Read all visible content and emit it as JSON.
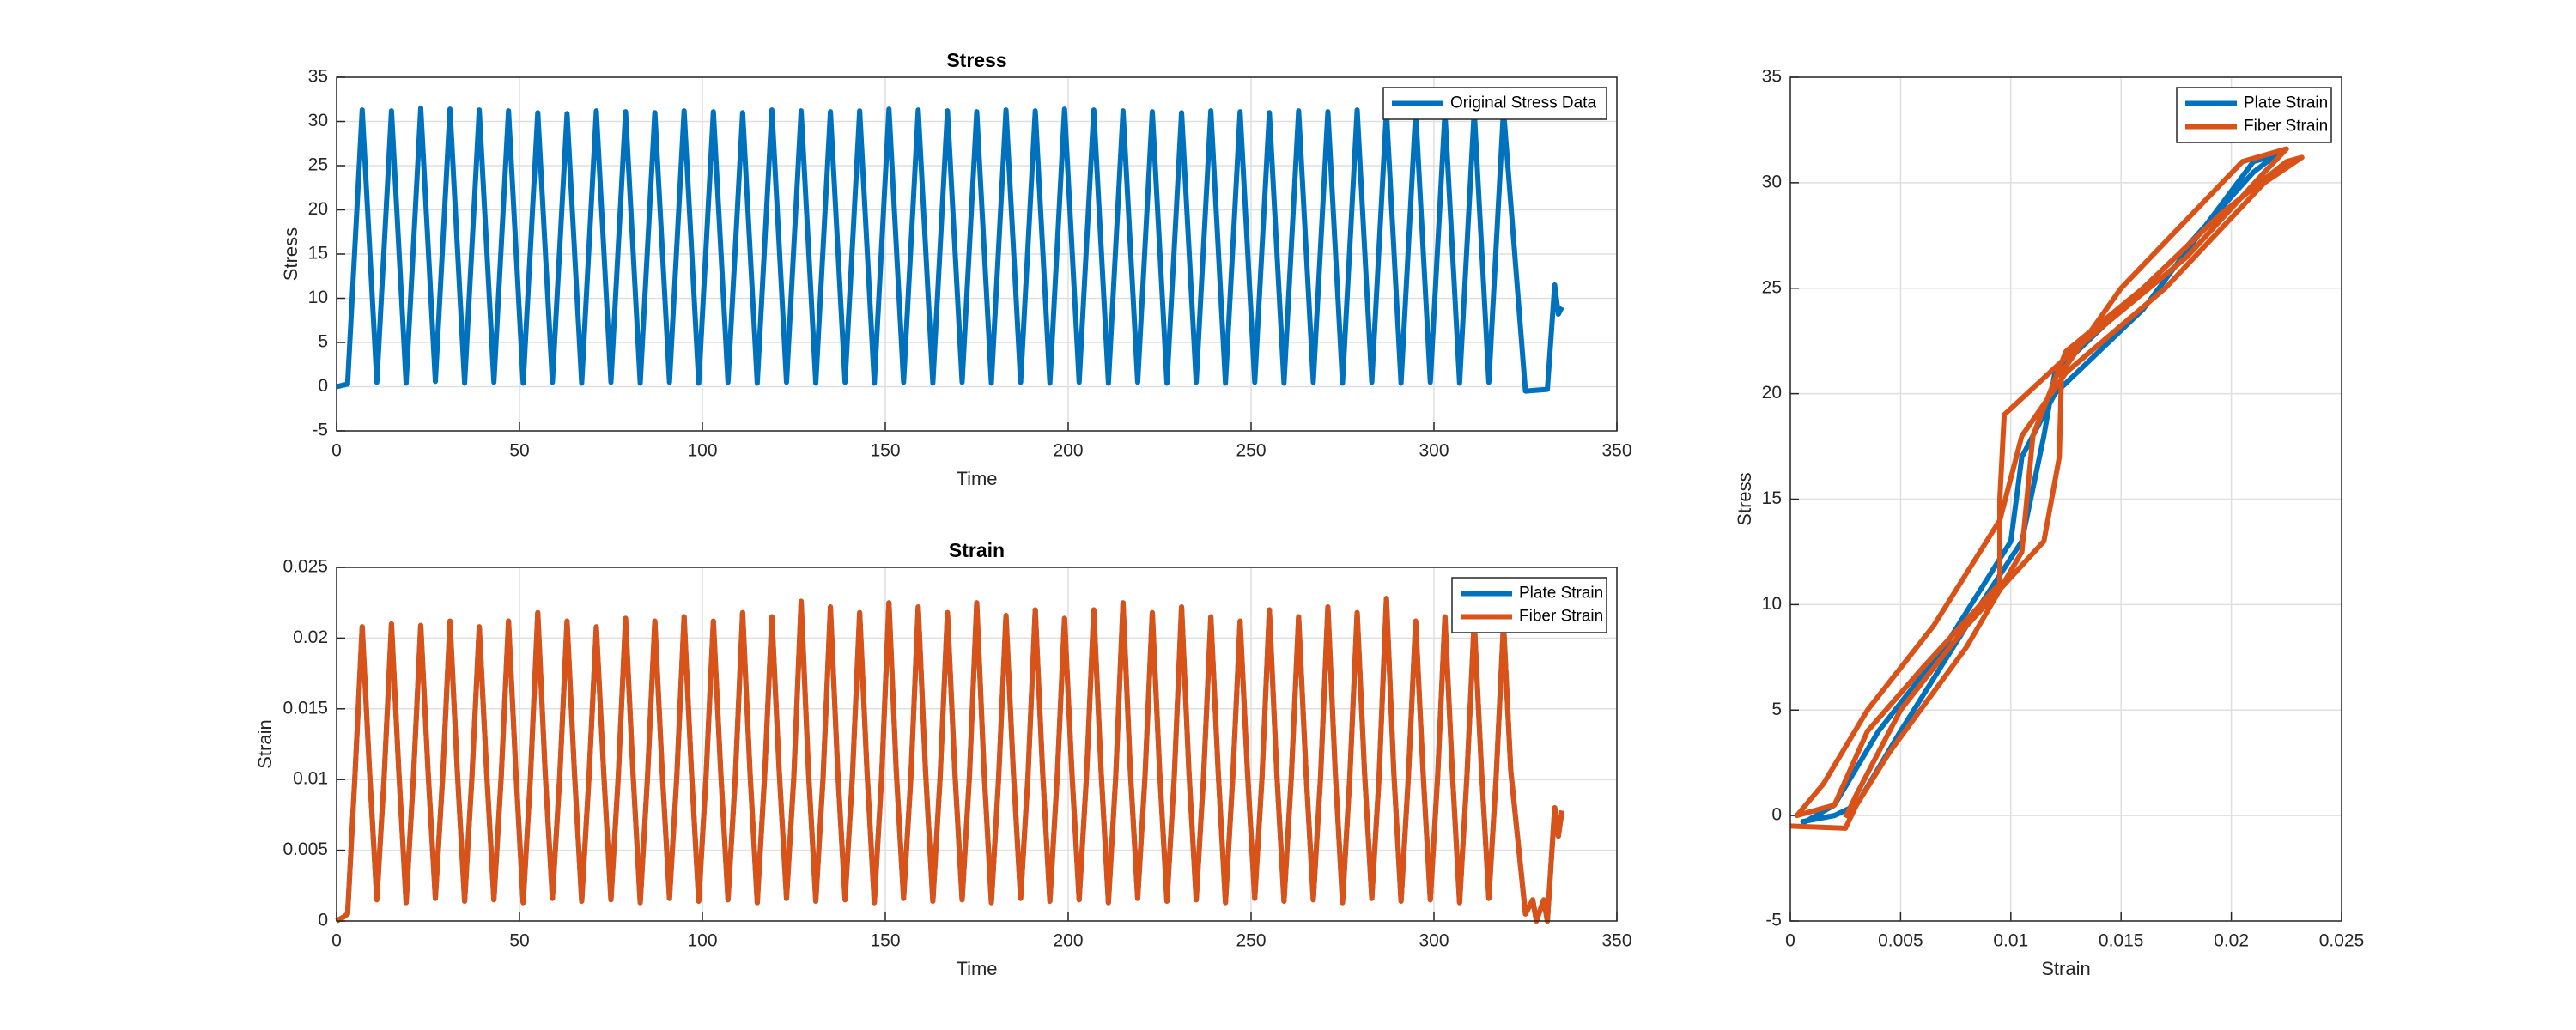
{
  "chart_data": [
    {
      "type": "line",
      "title": "Stress",
      "xlabel": "Time",
      "ylabel": "Stress",
      "x": [
        0,
        3,
        7,
        11,
        15,
        19,
        23,
        27,
        31,
        35,
        39,
        43,
        47,
        51,
        55,
        59,
        63,
        67,
        71,
        75,
        79,
        83,
        87,
        91,
        95,
        99,
        103,
        107,
        111,
        115,
        119,
        123,
        127,
        131,
        135,
        139,
        143,
        147,
        151,
        155,
        159,
        163,
        167,
        171,
        175,
        179,
        183,
        187,
        191,
        195,
        199,
        203,
        207,
        211,
        215,
        219,
        223,
        227,
        231,
        235,
        239,
        243,
        247,
        251,
        255,
        259,
        263,
        267,
        271,
        275,
        279,
        283,
        287,
        291,
        295,
        299,
        303,
        307,
        311,
        315,
        319,
        325,
        331,
        333,
        334,
        335
      ],
      "series": [
        {
          "name": "Original Stress Data",
          "color": "#0072BD",
          "values": [
            0,
            0.3,
            31.3,
            0.5,
            31.2,
            0.4,
            31.5,
            0.6,
            31.4,
            0.4,
            31.3,
            0.5,
            31.2,
            0.4,
            31.0,
            0.5,
            30.9,
            0.4,
            31.2,
            0.5,
            31.1,
            0.4,
            31.0,
            0.5,
            31.2,
            0.4,
            31.1,
            0.5,
            31.0,
            0.4,
            31.3,
            0.5,
            31.2,
            0.4,
            31.1,
            0.5,
            31.2,
            0.4,
            31.4,
            0.5,
            31.3,
            0.4,
            31.2,
            0.5,
            31.1,
            0.4,
            31.3,
            0.5,
            31.2,
            0.4,
            31.4,
            0.5,
            31.3,
            0.4,
            31.2,
            0.5,
            31.1,
            0.4,
            31.0,
            0.5,
            31.2,
            0.4,
            31.1,
            0.5,
            31.0,
            0.4,
            31.2,
            0.5,
            31.1,
            0.4,
            31.3,
            0.5,
            31.2,
            0.4,
            31.1,
            0.5,
            31.0,
            0.4,
            31.2,
            0.5,
            31.3,
            -0.5,
            -0.3,
            11.5,
            8.2,
            9
          ]
        }
      ],
      "xlim": [
        0,
        350
      ],
      "ylim": [
        -5,
        35
      ],
      "xticks": [
        0,
        50,
        100,
        150,
        200,
        250,
        300,
        350
      ],
      "yticks": [
        -5,
        0,
        5,
        10,
        15,
        20,
        25,
        30,
        35
      ],
      "grid": true,
      "legend": "upper right"
    },
    {
      "type": "line",
      "title": "Strain",
      "xlabel": "Time",
      "ylabel": "Strain",
      "x": [
        0,
        2,
        3,
        5,
        7,
        9,
        11,
        13,
        15,
        17,
        19,
        21,
        23,
        25,
        27,
        29,
        31,
        33,
        35,
        37,
        39,
        41,
        43,
        45,
        47,
        49,
        51,
        53,
        55,
        57,
        59,
        61,
        63,
        65,
        67,
        69,
        71,
        73,
        75,
        77,
        79,
        81,
        83,
        85,
        87,
        89,
        91,
        93,
        95,
        97,
        99,
        101,
        103,
        105,
        107,
        109,
        111,
        113,
        115,
        117,
        119,
        121,
        123,
        125,
        127,
        129,
        131,
        133,
        135,
        137,
        139,
        141,
        143,
        145,
        147,
        149,
        151,
        153,
        155,
        157,
        159,
        161,
        163,
        165,
        167,
        169,
        171,
        173,
        175,
        177,
        179,
        181,
        183,
        185,
        187,
        189,
        191,
        193,
        195,
        197,
        199,
        201,
        203,
        205,
        207,
        209,
        211,
        213,
        215,
        217,
        219,
        221,
        223,
        225,
        227,
        229,
        231,
        233,
        235,
        237,
        239,
        241,
        243,
        245,
        247,
        249,
        251,
        253,
        255,
        257,
        259,
        261,
        263,
        265,
        267,
        269,
        271,
        273,
        275,
        277,
        279,
        281,
        283,
        285,
        287,
        289,
        291,
        293,
        295,
        297,
        299,
        301,
        303,
        305,
        307,
        309,
        311,
        313,
        315,
        317,
        319,
        321,
        325,
        327,
        328,
        330,
        331,
        333,
        334,
        335
      ],
      "series": [
        {
          "name": "Plate Strain",
          "color": "#0072BD",
          "values": [
            0,
            0.0003,
            0.0005,
            0.0102,
            0.0208,
            0.0106,
            0.0015,
            0.0102,
            0.021,
            0.0106,
            0.0013,
            0.0102,
            0.0209,
            0.0106,
            0.0016,
            0.0102,
            0.0212,
            0.0106,
            0.0014,
            0.0102,
            0.0208,
            0.0106,
            0.0015,
            0.0102,
            0.0212,
            0.0106,
            0.0013,
            0.0102,
            0.0218,
            0.0106,
            0.0016,
            0.0102,
            0.0212,
            0.0106,
            0.0014,
            0.0102,
            0.0208,
            0.0106,
            0.0015,
            0.0102,
            0.0214,
            0.0106,
            0.0013,
            0.0102,
            0.0212,
            0.0106,
            0.0016,
            0.0102,
            0.0215,
            0.0106,
            0.0014,
            0.0102,
            0.0212,
            0.0106,
            0.0015,
            0.0102,
            0.0218,
            0.0106,
            0.0013,
            0.0102,
            0.0215,
            0.0106,
            0.0016,
            0.0102,
            0.0226,
            0.0106,
            0.0014,
            0.0102,
            0.0222,
            0.0106,
            0.0015,
            0.0102,
            0.0218,
            0.0106,
            0.0013,
            0.0102,
            0.0225,
            0.0106,
            0.0016,
            0.0102,
            0.0222,
            0.0106,
            0.0014,
            0.0102,
            0.0218,
            0.0106,
            0.0015,
            0.0102,
            0.0225,
            0.0106,
            0.0013,
            0.0102,
            0.0216,
            0.0106,
            0.0016,
            0.0102,
            0.022,
            0.0106,
            0.0014,
            0.0102,
            0.0214,
            0.0106,
            0.0015,
            0.0102,
            0.022,
            0.0106,
            0.0013,
            0.0102,
            0.0225,
            0.0106,
            0.0016,
            0.0102,
            0.0218,
            0.0106,
            0.0014,
            0.0102,
            0.0222,
            0.0106,
            0.0015,
            0.0102,
            0.0215,
            0.0106,
            0.0013,
            0.0102,
            0.0212,
            0.0106,
            0.0016,
            0.0102,
            0.022,
            0.0106,
            0.0014,
            0.0102,
            0.0215,
            0.0106,
            0.0015,
            0.0102,
            0.0222,
            0.0106,
            0.0013,
            0.0102,
            0.0218,
            0.0106,
            0.0016,
            0.0102,
            0.0228,
            0.0106,
            0.0014,
            0.0102,
            0.0212,
            0.0106,
            0.0015,
            0.0102,
            0.0215,
            0.0106,
            0.0013,
            0.0102,
            0.0212,
            0.0106,
            0.0016,
            0.0102,
            0.021,
            0.0106,
            0.0005,
            0.0015,
            0,
            0.0015,
            0,
            0.008,
            0.006,
            0.0078
          ]
        },
        {
          "name": "Fiber Strain",
          "color": "#D95319",
          "values": [
            0,
            0.0003,
            0.0005,
            0.0102,
            0.0208,
            0.0106,
            0.0015,
            0.0102,
            0.021,
            0.0106,
            0.0013,
            0.0102,
            0.0209,
            0.0106,
            0.0016,
            0.0102,
            0.0212,
            0.0106,
            0.0014,
            0.0102,
            0.0208,
            0.0106,
            0.0015,
            0.0102,
            0.0212,
            0.0106,
            0.0013,
            0.0102,
            0.0218,
            0.0106,
            0.0016,
            0.0102,
            0.0212,
            0.0106,
            0.0014,
            0.0102,
            0.0208,
            0.0106,
            0.0015,
            0.0102,
            0.0214,
            0.0106,
            0.0013,
            0.0102,
            0.0212,
            0.0106,
            0.0016,
            0.0102,
            0.0215,
            0.0106,
            0.0014,
            0.0102,
            0.0212,
            0.0106,
            0.0015,
            0.0102,
            0.0218,
            0.0106,
            0.0013,
            0.0102,
            0.0215,
            0.0106,
            0.0016,
            0.0102,
            0.0226,
            0.0106,
            0.0014,
            0.0102,
            0.0222,
            0.0106,
            0.0015,
            0.0102,
            0.0218,
            0.0106,
            0.0013,
            0.0102,
            0.0225,
            0.0106,
            0.0016,
            0.0102,
            0.0222,
            0.0106,
            0.0014,
            0.0102,
            0.0218,
            0.0106,
            0.0015,
            0.0102,
            0.0225,
            0.0106,
            0.0013,
            0.0102,
            0.0216,
            0.0106,
            0.0016,
            0.0102,
            0.022,
            0.0106,
            0.0014,
            0.0102,
            0.0214,
            0.0106,
            0.0015,
            0.0102,
            0.022,
            0.0106,
            0.0013,
            0.0102,
            0.0225,
            0.0106,
            0.0016,
            0.0102,
            0.0218,
            0.0106,
            0.0014,
            0.0102,
            0.0222,
            0.0106,
            0.0015,
            0.0102,
            0.0215,
            0.0106,
            0.0013,
            0.0102,
            0.0212,
            0.0106,
            0.0016,
            0.0102,
            0.022,
            0.0106,
            0.0014,
            0.0102,
            0.0215,
            0.0106,
            0.0015,
            0.0102,
            0.0222,
            0.0106,
            0.0013,
            0.0102,
            0.0218,
            0.0106,
            0.0016,
            0.0102,
            0.0228,
            0.0106,
            0.0014,
            0.0102,
            0.0212,
            0.0106,
            0.0015,
            0.0102,
            0.0215,
            0.0106,
            0.0013,
            0.0102,
            0.0212,
            0.0106,
            0.0016,
            0.0102,
            0.021,
            0.0106,
            0.0005,
            0.0015,
            0,
            0.0015,
            0,
            0.008,
            0.006,
            0.0078
          ]
        }
      ],
      "xlim": [
        0,
        350
      ],
      "ylim": [
        0,
        0.025
      ],
      "xticks": [
        0,
        50,
        100,
        150,
        200,
        250,
        300,
        350
      ],
      "yticks": [
        0,
        0.005,
        0.01,
        0.015,
        0.02,
        0.025
      ],
      "grid": true,
      "legend": "upper right"
    },
    {
      "type": "line",
      "xlabel": "Strain",
      "ylabel": "Stress",
      "series": [
        {
          "name": "Plate Strain",
          "color": "#0072BD",
          "x": [
            0.0005,
            0.002,
            0.003,
            0.005,
            0.008,
            0.0105,
            0.0115,
            0.012,
            0.015,
            0.018,
            0.021,
            0.022,
            0.021,
            0.016,
            0.012,
            0.0105,
            0.01,
            0.007,
            0.004,
            0.002,
            0.0005
          ],
          "values": [
            -0.3,
            0,
            0.5,
            4,
            9,
            13,
            18,
            21,
            24,
            27,
            30.5,
            31.3,
            31,
            24,
            20,
            17,
            13,
            8,
            4,
            0.5,
            -0.4
          ]
        },
        {
          "name": "Fiber Strain",
          "color": "#D95319",
          "x": [
            0,
            0.0025,
            0.003,
            0.0045,
            0.008,
            0.0105,
            0.011,
            0.0125,
            0.016,
            0.0195,
            0.0225,
            0.0232,
            0.0215,
            0.017,
            0.0125,
            0.0105,
            0.0095,
            0.0065,
            0.0035,
            0.0015,
            0.0003,
            0.002,
            0.0035,
            0.006,
            0.0095,
            0.0095,
            0.0097,
            0.0128,
            0.018,
            0.0215,
            0.0225,
            0.0205,
            0.015,
            0.0123,
            0.0122,
            0.0115,
            0.008,
            0.005,
            0.003,
            0.0025
          ],
          "values": [
            -0.5,
            -0.6,
            0.5,
            3,
            8,
            12.5,
            18,
            22,
            25,
            28.5,
            31,
            31.2,
            30,
            25,
            21,
            18,
            14,
            9,
            5,
            1.5,
            0,
            0.5,
            4,
            7,
            11,
            15,
            19,
            22,
            26.5,
            30.5,
            31.6,
            31,
            25,
            21,
            17,
            13,
            9,
            5,
            1,
            -0.1
          ]
        }
      ],
      "xlim": [
        0,
        0.025
      ],
      "ylim": [
        -5,
        35
      ],
      "xticks": [
        0,
        0.005,
        0.01,
        0.015,
        0.02,
        0.025
      ],
      "yticks": [
        -5,
        0,
        5,
        10,
        15,
        20,
        25,
        30,
        35
      ],
      "grid": true,
      "legend": "upper right"
    }
  ]
}
